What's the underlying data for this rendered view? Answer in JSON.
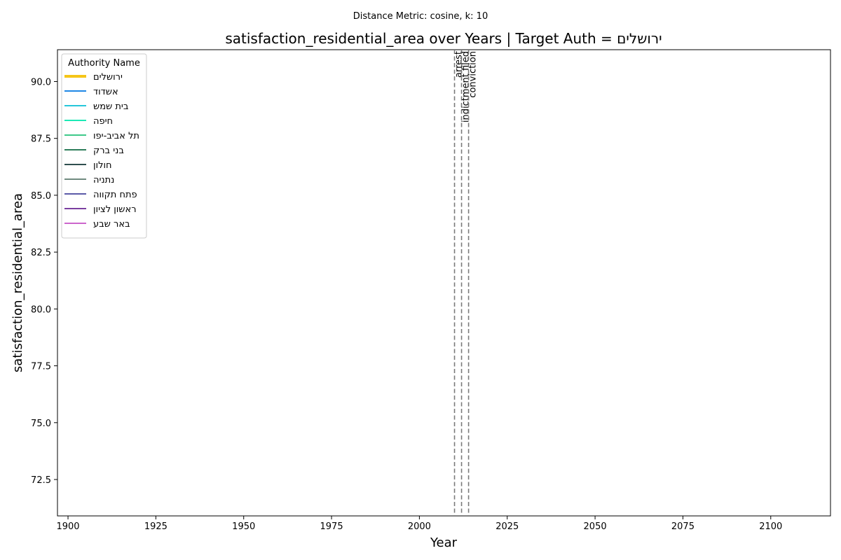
{
  "chart_data": {
    "type": "line",
    "suptitle": "Distance Metric: cosine, k: 10",
    "title": "satisfaction_residential_area over Years | Target Auth = ירושלים",
    "xlabel": "Year",
    "ylabel": "satisfaction_residential_area",
    "xlim": [
      1897,
      2117
    ],
    "ylim": [
      70.9,
      91.4
    ],
    "xticks": [
      1900,
      1925,
      1950,
      1975,
      2000,
      2025,
      2050,
      2075,
      2100
    ],
    "yticks": [
      72.5,
      75.0,
      77.5,
      80.0,
      82.5,
      85.0,
      87.5,
      90.0
    ],
    "grid": false,
    "legend": {
      "title": "Authority Name",
      "placement": "top-left",
      "entries": [
        {
          "name": "ירושלים",
          "color": "#f5c518",
          "target": true
        },
        {
          "name": "אשדוד",
          "color": "#1e88e5",
          "target": false
        },
        {
          "name": "בית שמש",
          "color": "#26c6da",
          "target": false
        },
        {
          "name": "חיפה",
          "color": "#1de9b6",
          "target": false
        },
        {
          "name": "תל אביב-יפו",
          "color": "#3ec98a",
          "target": false
        },
        {
          "name": "בני ברק",
          "color": "#2e7d5b",
          "target": false
        },
        {
          "name": "חולון",
          "color": "#2f4f4f",
          "target": false
        },
        {
          "name": "נתניה",
          "color": "#708a80",
          "target": false
        },
        {
          "name": "פתח תקווה",
          "color": "#5c5aa8",
          "target": false
        },
        {
          "name": "ראשון לציון",
          "color": "#7b3fa0",
          "target": false
        },
        {
          "name": "באר שבע",
          "color": "#cc66cc",
          "target": false
        }
      ]
    },
    "series": [],
    "events": [
      {
        "label": "arrest",
        "year": 2010
      },
      {
        "label": "indictment filed",
        "year": 2012
      },
      {
        "label": "conviction",
        "year": 2014
      }
    ]
  }
}
